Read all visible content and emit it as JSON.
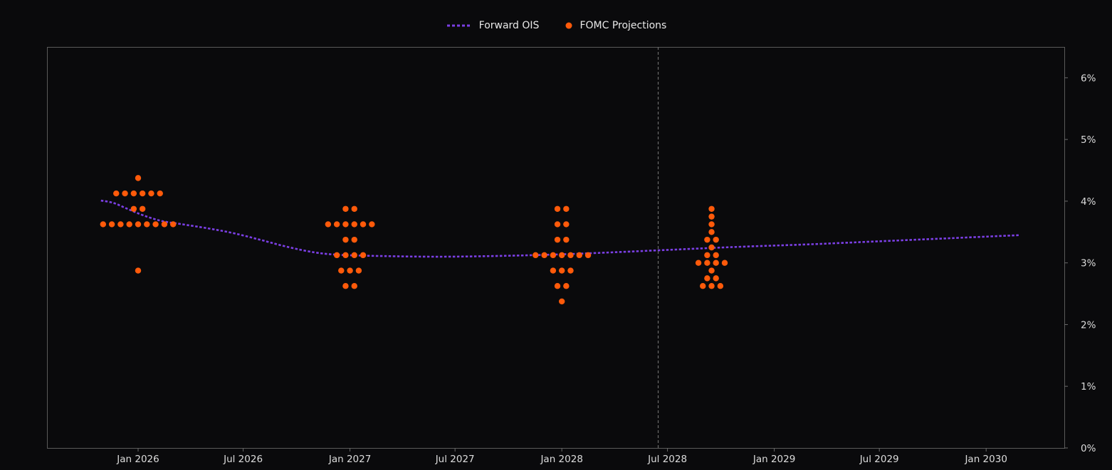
{
  "chart_data": {
    "type": "scatter",
    "title": "",
    "xlabel": "",
    "ylabel": "",
    "x_axis": {
      "type": "date",
      "range": [
        "2025-09-01",
        "2030-04-01"
      ],
      "ticks": [
        "Jan 2026",
        "Jul 2026",
        "Jan 2027",
        "Jul 2027",
        "Jan 2028",
        "Jul 2028",
        "Jan 2029",
        "Jul 2029",
        "Jan 2030"
      ],
      "tick_dates": [
        "2026-01-01",
        "2026-07-01",
        "2027-01-01",
        "2027-07-01",
        "2028-01-01",
        "2028-07-01",
        "2029-01-01",
        "2029-07-01",
        "2030-01-01"
      ]
    },
    "y_axis": {
      "side": "right",
      "range": [
        0,
        6.5
      ],
      "ticks": [
        "0%",
        "1%",
        "2%",
        "3%",
        "4%",
        "5%",
        "6%"
      ],
      "tick_values": [
        0,
        1,
        2,
        3,
        4,
        5,
        6
      ]
    },
    "grid": false,
    "legend_position": "top-center",
    "vertical_marker": {
      "date": "2028-06-15",
      "style": "dashed",
      "color": "#6a6a6a"
    },
    "series": [
      {
        "name": "Forward OIS",
        "kind": "line",
        "style": "dotted",
        "color": "#7b3fe4",
        "points": [
          {
            "x": "2025-10-29",
            "y": 4.01
          },
          {
            "x": "2025-11-20",
            "y": 3.97
          },
          {
            "x": "2025-12-15",
            "y": 3.87
          },
          {
            "x": "2026-01-10",
            "y": 3.77
          },
          {
            "x": "2026-02-10",
            "y": 3.68
          },
          {
            "x": "2026-03-15",
            "y": 3.63
          },
          {
            "x": "2026-05-01",
            "y": 3.56
          },
          {
            "x": "2026-06-15",
            "y": 3.48
          },
          {
            "x": "2026-08-01",
            "y": 3.37
          },
          {
            "x": "2026-09-15",
            "y": 3.26
          },
          {
            "x": "2026-11-01",
            "y": 3.17
          },
          {
            "x": "2026-12-15",
            "y": 3.13
          },
          {
            "x": "2027-03-01",
            "y": 3.11
          },
          {
            "x": "2027-06-01",
            "y": 3.1
          },
          {
            "x": "2027-09-01",
            "y": 3.11
          },
          {
            "x": "2027-12-01",
            "y": 3.13
          },
          {
            "x": "2028-03-01",
            "y": 3.16
          },
          {
            "x": "2028-07-01",
            "y": 3.21
          },
          {
            "x": "2028-11-01",
            "y": 3.26
          },
          {
            "x": "2029-03-01",
            "y": 3.3
          },
          {
            "x": "2029-07-01",
            "y": 3.35
          },
          {
            "x": "2029-11-01",
            "y": 3.4
          },
          {
            "x": "2030-03-01",
            "y": 3.45
          }
        ]
      },
      {
        "name": "FOMC Projections",
        "kind": "scatter",
        "color": "#ff5a0a",
        "groups": [
          {
            "date": "2026-01-01",
            "levels": [
              {
                "y": 4.375,
                "count": 1
              },
              {
                "y": 4.125,
                "count": 6
              },
              {
                "y": 3.875,
                "count": 2
              },
              {
                "y": 3.625,
                "count": 9
              },
              {
                "y": 2.875,
                "count": 1
              }
            ]
          },
          {
            "date": "2027-01-01",
            "levels": [
              {
                "y": 3.875,
                "count": 2
              },
              {
                "y": 3.625,
                "count": 6
              },
              {
                "y": 3.375,
                "count": 2
              },
              {
                "y": 3.125,
                "count": 4
              },
              {
                "y": 2.875,
                "count": 3
              },
              {
                "y": 2.625,
                "count": 2
              }
            ]
          },
          {
            "date": "2028-01-01",
            "levels": [
              {
                "y": 3.875,
                "count": 2
              },
              {
                "y": 3.625,
                "count": 2
              },
              {
                "y": 3.375,
                "count": 2
              },
              {
                "y": 3.125,
                "count": 7
              },
              {
                "y": 2.875,
                "count": 3
              },
              {
                "y": 2.625,
                "count": 2
              },
              {
                "y": 2.375,
                "count": 1
              }
            ]
          },
          {
            "date": "2028-09-15",
            "levels": [
              {
                "y": 3.875,
                "count": 1
              },
              {
                "y": 3.75,
                "count": 1
              },
              {
                "y": 3.625,
                "count": 1
              },
              {
                "y": 3.5,
                "count": 1
              },
              {
                "y": 3.375,
                "count": 2
              },
              {
                "y": 3.25,
                "count": 1
              },
              {
                "y": 3.125,
                "count": 2
              },
              {
                "y": 3.0,
                "count": 4
              },
              {
                "y": 2.875,
                "count": 1
              },
              {
                "y": 2.75,
                "count": 2
              },
              {
                "y": 2.625,
                "count": 3
              }
            ]
          }
        ]
      }
    ]
  }
}
